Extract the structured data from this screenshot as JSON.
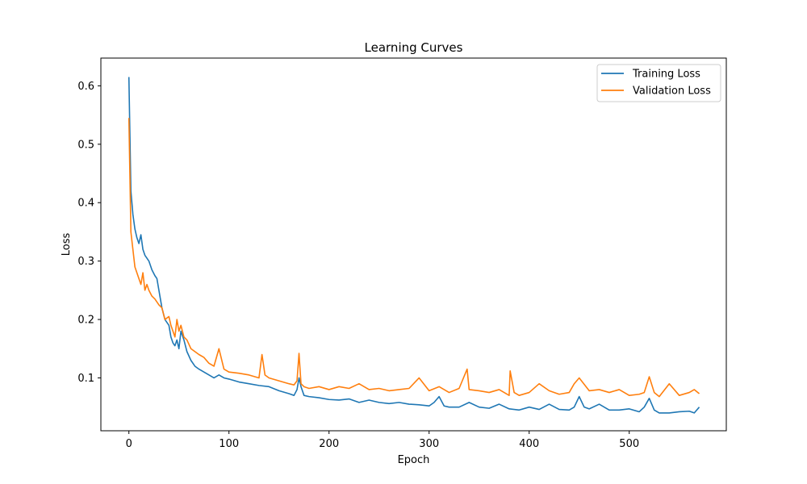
{
  "chart_data": {
    "type": "line",
    "title": "Learning Curves",
    "xlabel": "Epoch",
    "ylabel": "Loss",
    "xlim": [
      -28,
      597
    ],
    "ylim": [
      0.0095,
      0.6475
    ],
    "xticks": [
      0,
      100,
      200,
      300,
      400,
      500
    ],
    "yticks": [
      0.1,
      0.2,
      0.3,
      0.4,
      0.5,
      0.6
    ],
    "ytick_labels": [
      "0.1",
      "0.2",
      "0.3",
      "0.4",
      "0.5",
      "0.6"
    ],
    "grid": false,
    "legend": "top-right",
    "series": [
      {
        "name": "Training Loss",
        "color": "#1f77b4",
        "x": [
          0,
          2,
          4,
          6,
          8,
          10,
          12,
          14,
          16,
          18,
          20,
          23,
          26,
          28,
          30,
          33,
          36,
          40,
          42,
          44,
          46,
          48,
          50,
          52,
          55,
          58,
          62,
          66,
          70,
          75,
          80,
          85,
          90,
          95,
          100,
          110,
          120,
          130,
          140,
          150,
          160,
          165,
          168,
          170,
          172,
          175,
          180,
          190,
          200,
          210,
          220,
          230,
          240,
          250,
          260,
          270,
          280,
          290,
          300,
          305,
          310,
          315,
          320,
          330,
          340,
          350,
          360,
          370,
          380,
          390,
          400,
          410,
          420,
          430,
          440,
          445,
          450,
          455,
          460,
          470,
          480,
          490,
          500,
          510,
          515,
          520,
          525,
          530,
          540,
          550,
          560,
          565,
          570
        ],
        "y": [
          0.615,
          0.42,
          0.38,
          0.355,
          0.34,
          0.33,
          0.345,
          0.32,
          0.31,
          0.305,
          0.3,
          0.285,
          0.275,
          0.27,
          0.25,
          0.22,
          0.2,
          0.19,
          0.17,
          0.16,
          0.155,
          0.165,
          0.15,
          0.18,
          0.165,
          0.145,
          0.13,
          0.12,
          0.115,
          0.11,
          0.105,
          0.1,
          0.105,
          0.1,
          0.098,
          0.093,
          0.09,
          0.087,
          0.085,
          0.078,
          0.073,
          0.07,
          0.08,
          0.1,
          0.085,
          0.07,
          0.068,
          0.066,
          0.063,
          0.062,
          0.064,
          0.058,
          0.062,
          0.058,
          0.056,
          0.058,
          0.055,
          0.054,
          0.052,
          0.058,
          0.068,
          0.052,
          0.05,
          0.05,
          0.058,
          0.05,
          0.048,
          0.055,
          0.047,
          0.045,
          0.05,
          0.046,
          0.055,
          0.046,
          0.045,
          0.05,
          0.068,
          0.05,
          0.047,
          0.055,
          0.045,
          0.045,
          0.047,
          0.042,
          0.05,
          0.065,
          0.045,
          0.04,
          0.04,
          0.042,
          0.043,
          0.04,
          0.05
        ]
      },
      {
        "name": "Validation Loss",
        "color": "#ff7f0e",
        "x": [
          0,
          2,
          4,
          6,
          8,
          10,
          12,
          14,
          16,
          18,
          20,
          23,
          26,
          28,
          30,
          33,
          36,
          40,
          42,
          44,
          46,
          48,
          50,
          52,
          55,
          58,
          62,
          66,
          70,
          75,
          80,
          85,
          90,
          95,
          100,
          110,
          120,
          130,
          133,
          136,
          140,
          150,
          160,
          165,
          168,
          170,
          172,
          175,
          180,
          190,
          200,
          210,
          220,
          230,
          240,
          250,
          260,
          270,
          280,
          290,
          300,
          310,
          320,
          330,
          338,
          340,
          350,
          360,
          370,
          380,
          381,
          385,
          390,
          400,
          410,
          420,
          430,
          440,
          445,
          450,
          460,
          470,
          480,
          490,
          500,
          510,
          515,
          520,
          525,
          530,
          540,
          550,
          560,
          565,
          570
        ],
        "y": [
          0.545,
          0.35,
          0.32,
          0.29,
          0.28,
          0.27,
          0.26,
          0.28,
          0.25,
          0.26,
          0.25,
          0.24,
          0.235,
          0.23,
          0.225,
          0.22,
          0.2,
          0.205,
          0.19,
          0.18,
          0.17,
          0.2,
          0.18,
          0.19,
          0.17,
          0.165,
          0.15,
          0.145,
          0.14,
          0.135,
          0.125,
          0.12,
          0.15,
          0.115,
          0.11,
          0.108,
          0.105,
          0.1,
          0.14,
          0.105,
          0.1,
          0.095,
          0.09,
          0.088,
          0.095,
          0.142,
          0.09,
          0.085,
          0.082,
          0.085,
          0.08,
          0.085,
          0.082,
          0.09,
          0.08,
          0.082,
          0.078,
          0.08,
          0.082,
          0.1,
          0.078,
          0.085,
          0.075,
          0.082,
          0.115,
          0.08,
          0.078,
          0.075,
          0.08,
          0.07,
          0.112,
          0.075,
          0.07,
          0.075,
          0.09,
          0.078,
          0.072,
          0.075,
          0.09,
          0.1,
          0.078,
          0.08,
          0.075,
          0.08,
          0.07,
          0.072,
          0.075,
          0.102,
          0.075,
          0.068,
          0.09,
          0.07,
          0.075,
          0.08,
          0.073
        ]
      }
    ]
  }
}
